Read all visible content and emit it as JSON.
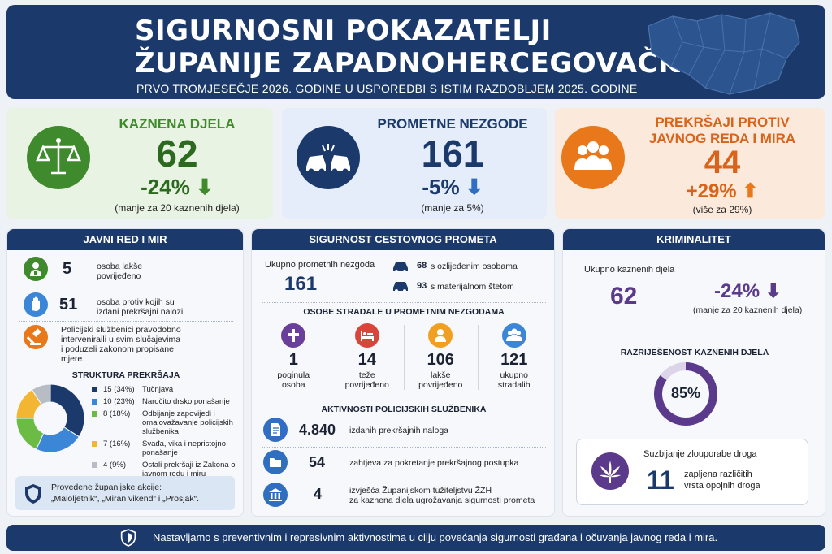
{
  "header": {
    "title_line1": "SIGURNOSNI POKAZATELJI",
    "title_line2": "ŽUPANIJE ZAPADNOHERCEGOVAČKE",
    "subtitle": "PRVO TROMJESEČJE 2026. GODINE U USPOREDBI S ISTIM RAZDOBLJEM 2025. GODINE"
  },
  "kpis": [
    {
      "title": "KAZNENA DJELA",
      "value": "62",
      "change": "-24%",
      "note": "(manje za 20 kaznenih djela)",
      "icon": "scales-icon",
      "color": "#3f8a2c"
    },
    {
      "title": "PROMETNE NEZGODE",
      "value": "161",
      "change": "-5%",
      "note": "(manje za 5%)",
      "icon": "car-crash-icon",
      "color": "#1b3a6b"
    },
    {
      "title": "PREKRŠAJI PROTIV",
      "title2": "JAVNOG REDA I MIRA",
      "value": "44",
      "change": "+29%",
      "note": "(više za 29%)",
      "icon": "people-icon",
      "color": "#e8781a"
    }
  ],
  "javni_red": {
    "header": "JAVNI RED I MIR",
    "items": [
      {
        "value": "5",
        "label1": "osoba lakše",
        "label2": "povrijeđeno",
        "icon": "injured-person-icon"
      },
      {
        "value": "51",
        "label1": "osoba protiv kojih su",
        "label2": "izdani prekršajni nalozi",
        "icon": "hand-stop-icon"
      }
    ],
    "info": [
      "Policijski službenici pravodobno",
      "interveniraili u svim slučajevima",
      "i poduzeli zakonom propisane",
      "mjere."
    ],
    "structure_title": "STRUKTURA PREKRŠAJA",
    "structure": [
      {
        "count": "15 (34%)",
        "label": [
          "Tučnjava"
        ],
        "value": 15,
        "color": "#1b3a6b"
      },
      {
        "count": "10 (23%)",
        "label": [
          "Naročito drsko ponašanje"
        ],
        "value": 10,
        "color": "#3b86d6"
      },
      {
        "count": "8 (18%)",
        "label": [
          "Odbijanje zapovijedi i",
          "omalovažavanje policijskih",
          "službenika"
        ],
        "value": 8,
        "color": "#6cbb45"
      },
      {
        "count": "7 (16%)",
        "label": [
          "Svađa, vika i nepristojno",
          "ponašanje"
        ],
        "value": 7,
        "color": "#f2b632"
      },
      {
        "count": "4 (9%)",
        "label": [
          "Ostali prekršaji iz Zakona o",
          "javnom redu i miru"
        ],
        "value": 4,
        "color": "#b8bcc4"
      }
    ],
    "actions_title": "Provedene županijske akcije:",
    "actions_text": "„Maloljetnik“, „Miran vikend“ i „Prosjak“."
  },
  "promet": {
    "header": "SIGURNOST CESTOVNOG PROMETA",
    "total_label": "Ukupno prometnih nezgoda",
    "total_value": "161",
    "injured_value": "68",
    "injured_label": "s ozlijeđenim osobama",
    "damage_value": "93",
    "damage_label": "s materijalnom štetom",
    "victims_title": "OSOBE STRADALE U PROMETNIM NEZGODAMA",
    "victims": [
      {
        "value": "1",
        "label1": "poginula",
        "label2": "osoba",
        "icon": "cross-icon",
        "color": "#6a3f9a"
      },
      {
        "value": "14",
        "label1": "teže",
        "label2": "povrijeđeno",
        "icon": "hospital-bed-icon",
        "color": "#d9443b"
      },
      {
        "value": "106",
        "label1": "lakše",
        "label2": "povrijeđeno",
        "icon": "person-icon",
        "color": "#f0a020"
      },
      {
        "value": "121",
        "label1": "ukupno",
        "label2": "stradalih",
        "icon": "group-icon",
        "color": "#3b86d6"
      }
    ],
    "activities_title": "AKTIVNOSTI POLICIJSKIH SLUŽBENIKA",
    "activities": [
      {
        "value": "4.840",
        "label1": "izdanih prekršajnih naloga",
        "label2": "",
        "icon": "document-icon"
      },
      {
        "value": "54",
        "label1": "zahtjeva za pokretanje prekršajnog postupka",
        "label2": "",
        "icon": "folder-icon"
      },
      {
        "value": "4",
        "label1": "izvješća Županijskom tužiteljstvu ŽZH",
        "label2": "za kaznena djela ugrožavanja sigurnosti prometa",
        "icon": "courthouse-icon"
      }
    ]
  },
  "kriminalitet": {
    "header": "KRIMINALITET",
    "total_label": "Ukupno kaznenih djela",
    "total_value": "62",
    "change": "-24%",
    "note": "(manje za 20 kaznenih djela)",
    "resolved_title": "RAZRIJEŠENOST KAZNENIH DJELA",
    "resolved_percent": 85,
    "resolved_label": "85%",
    "drugs_title": "Suzbijanje zlouporabe droga",
    "drugs_value": "11",
    "drugs_label1": "zapljena različitih",
    "drugs_label2": "vrsta opojnih droga"
  },
  "footer": {
    "text": "Nastavljamo s preventivnim i represivnim aktivnostima u cilju povećanja sigurnosti građana i očuvanja javnog reda i mira."
  }
}
